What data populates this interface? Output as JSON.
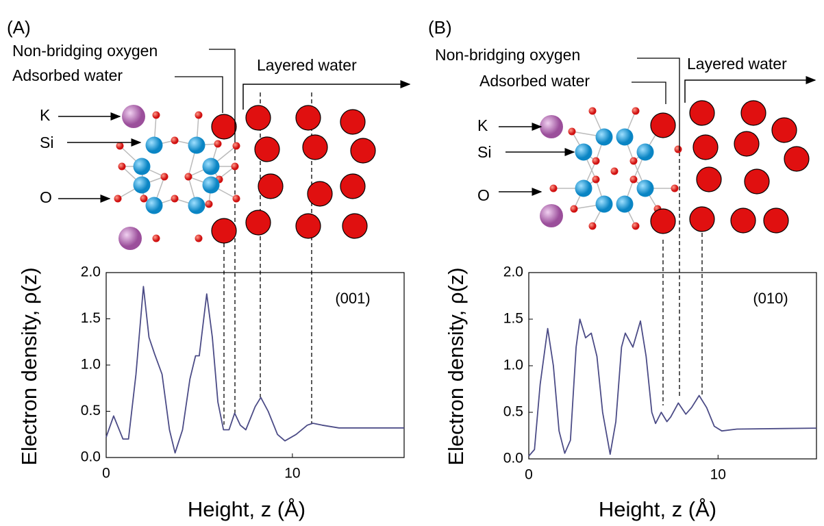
{
  "chart_data": [
    {
      "type": "line",
      "panel_label": "(A)",
      "annotation": "(001)",
      "x_label": "Height, z (Å)",
      "y_label": "Electron density, ρ(z)",
      "structure_labels": [
        "Non-bridging oxygen",
        "Adsorbed water",
        "Layered water",
        "K",
        "Si",
        "O"
      ],
      "x": [
        0,
        0.4,
        0.9,
        1.2,
        1.6,
        2.0,
        2.3,
        2.6,
        3.0,
        3.4,
        3.7,
        4.1,
        4.5,
        4.8,
        5.0,
        5.4,
        5.7,
        6.0,
        6.3,
        6.6,
        6.9,
        7.2,
        7.5,
        8.0,
        8.3,
        8.7,
        9.2,
        9.6,
        10.2,
        10.8,
        11.1,
        11.6,
        12.5,
        16
      ],
      "series": [
        {
          "color": "#4b4b86",
          "values": [
            0.22,
            0.45,
            0.2,
            0.2,
            0.9,
            1.85,
            1.3,
            1.12,
            0.9,
            0.3,
            0.05,
            0.3,
            0.85,
            1.1,
            1.1,
            1.77,
            1.3,
            0.6,
            0.3,
            0.3,
            0.48,
            0.35,
            0.3,
            0.55,
            0.65,
            0.5,
            0.25,
            0.18,
            0.25,
            0.35,
            0.37,
            0.35,
            0.32,
            0.32
          ]
        }
      ],
      "xlim": [
        0,
        16
      ],
      "ylim": [
        0,
        2
      ],
      "xticks": [
        0,
        10
      ],
      "yticks": [
        {
          "value": 0,
          "label": "0.0"
        },
        0.5,
        {
          "value": 1,
          "label": "1.0"
        },
        1.5,
        {
          "value": 2,
          "label": "2.0"
        }
      ]
    },
    {
      "type": "line",
      "panel_label": "(B)",
      "annotation": "(010)",
      "x_label": "Height, z (Å)",
      "y_label": "Electron density, ρ(z)",
      "structure_labels": [
        "Non-bridging oxygen",
        "Adsorbed water",
        "Layered water",
        "K",
        "Si",
        "O"
      ],
      "x": [
        0,
        0.3,
        0.6,
        1.0,
        1.3,
        1.6,
        1.9,
        2.2,
        2.5,
        2.7,
        3.0,
        3.3,
        3.6,
        3.9,
        4.3,
        4.6,
        4.9,
        5.1,
        5.5,
        5.9,
        6.2,
        6.5,
        6.7,
        7.0,
        7.3,
        7.5,
        7.9,
        8.3,
        8.6,
        9.0,
        9.4,
        9.8,
        10.2,
        11,
        15.2
      ],
      "series": [
        {
          "color": "#4b4b86",
          "values": [
            0.03,
            0.1,
            0.8,
            1.4,
            1.0,
            0.3,
            0.06,
            0.2,
            1.2,
            1.5,
            1.3,
            1.35,
            1.1,
            0.5,
            0.05,
            0.4,
            1.2,
            1.35,
            1.2,
            1.48,
            1.1,
            0.5,
            0.38,
            0.5,
            0.4,
            0.45,
            0.6,
            0.48,
            0.55,
            0.68,
            0.55,
            0.35,
            0.3,
            0.32,
            0.33
          ]
        }
      ],
      "xlim": [
        0,
        15.2
      ],
      "ylim": [
        0,
        2
      ],
      "xticks": [
        0,
        10
      ],
      "yticks": [
        {
          "value": 0,
          "label": "0.0"
        },
        0.5,
        {
          "value": 1,
          "label": "1.0"
        },
        1.5,
        {
          "value": 2,
          "label": "2.0"
        }
      ]
    }
  ]
}
